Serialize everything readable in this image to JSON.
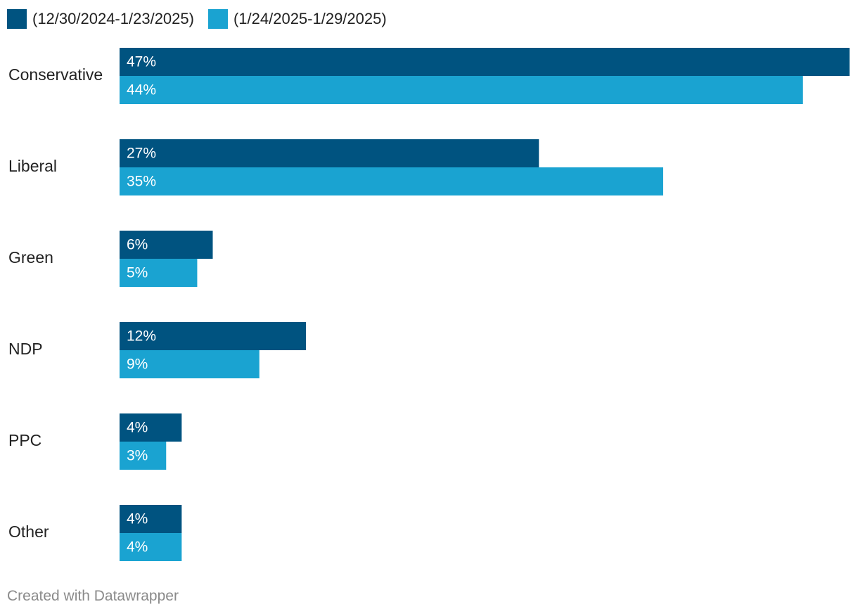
{
  "legend": {
    "series1_label": "(12/30/2024-1/23/2025)",
    "series2_label": "(1/24/2025-1/29/2025)"
  },
  "colors": {
    "series1": "#005380",
    "series2": "#1aa3d1",
    "category_text": "#222222",
    "value_text": "#ffffff"
  },
  "chart_data": {
    "type": "bar",
    "orientation": "horizontal",
    "categories": [
      "Conservative",
      "Liberal",
      "Green",
      "NDP",
      "PPC",
      "Other"
    ],
    "series": [
      {
        "name": "(12/30/2024-1/23/2025)",
        "values": [
          47,
          27,
          6,
          12,
          4,
          4
        ]
      },
      {
        "name": "(1/24/2025-1/29/2025)",
        "values": [
          44,
          35,
          5,
          9,
          3,
          4
        ]
      }
    ],
    "value_suffix": "%",
    "xlim": [
      0,
      47
    ],
    "grid": false,
    "legend_position": "top-left"
  },
  "footer": {
    "credit": "Created with Datawrapper"
  }
}
